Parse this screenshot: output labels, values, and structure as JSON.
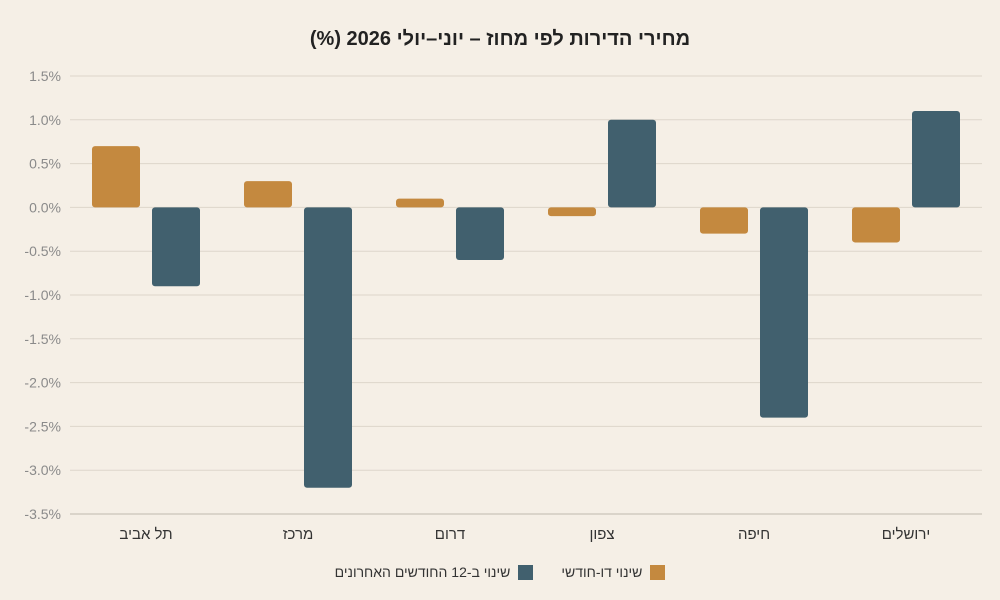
{
  "chart_data": {
    "type": "bar",
    "title": "מחירי הדירות לפי מחוז – יוני–יולי 2026 (%)",
    "xlabel": "",
    "ylabel": "",
    "categories": [
      "תל אביב",
      "מרכז",
      "דרום",
      "צפון",
      "חיפה",
      "ירושלים"
    ],
    "series": [
      {
        "name": "שינוי דו-חודשי",
        "values": [
          0.7,
          0.3,
          0.1,
          -0.1,
          -0.3,
          -0.4
        ],
        "color": "#c4893f"
      },
      {
        "name": "שינוי ב-12 החודשים האחרונים",
        "values": [
          -0.9,
          -3.2,
          -0.6,
          1.0,
          -2.4,
          1.1
        ],
        "color": "#41606e"
      }
    ],
    "ylim": [
      -3.5,
      1.5
    ],
    "yticks": [
      "1.5%",
      "1.0%",
      "0.5%",
      "0.0%",
      "-0.5%",
      "-1.0%",
      "-1.5%",
      "-2.0%",
      "-2.5%",
      "-3.0%",
      "-3.5%"
    ],
    "ytick_values": [
      1.5,
      1.0,
      0.5,
      0.0,
      -0.5,
      -1.0,
      -1.5,
      -2.0,
      -2.5,
      -3.0,
      -3.5
    ],
    "grid": true,
    "legend_position": "bottom-center"
  }
}
